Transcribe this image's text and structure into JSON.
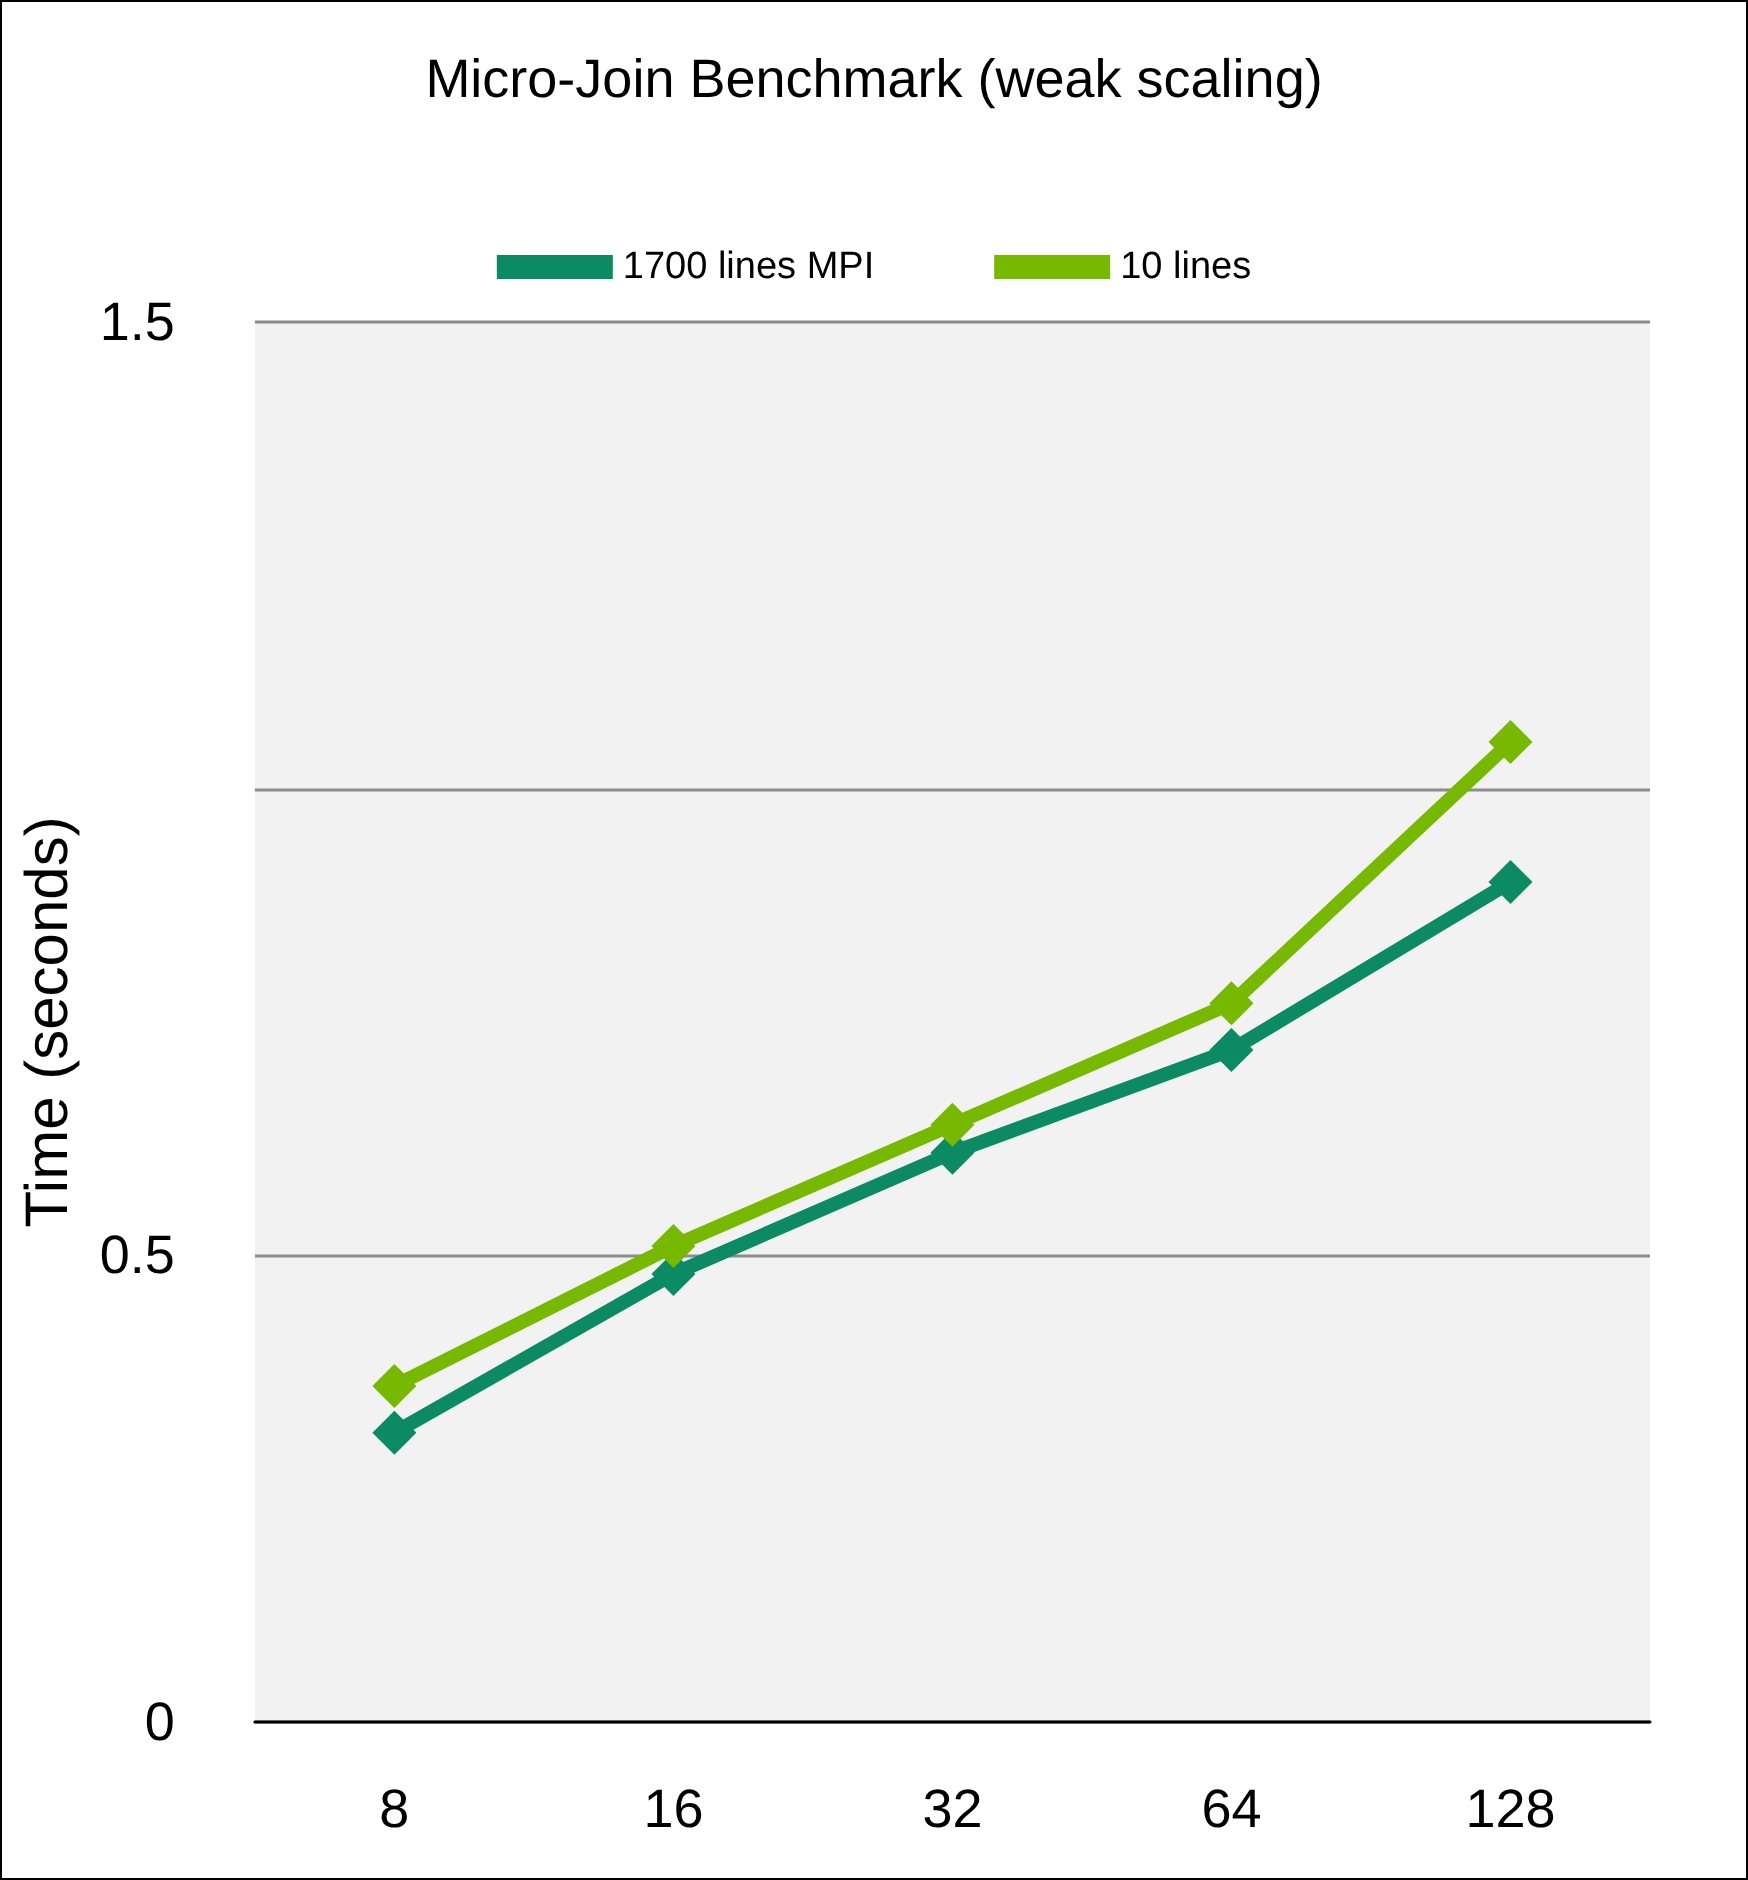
{
  "chart_data": {
    "type": "line",
    "title": "Micro-Join Benchmark (weak scaling)",
    "ylabel": "Time (seconds)",
    "categories": [
      "8",
      "16",
      "32",
      "64",
      "128"
    ],
    "series": [
      {
        "name": "1700 lines MPI",
        "color": "#0b8a63",
        "values": [
          0.31,
          0.48,
          0.61,
          0.72,
          0.9
        ]
      },
      {
        "name": "10 lines",
        "color": "#76b900",
        "values": [
          0.36,
          0.51,
          0.64,
          0.77,
          1.05
        ]
      }
    ],
    "ylim": [
      0,
      1.5
    ],
    "yticks": [
      0,
      0.5,
      {
        "value": 1,
        "label": null
      },
      1.5
    ],
    "grid": "y",
    "legend": "top",
    "marker": "diamond",
    "line_style": "solid"
  }
}
